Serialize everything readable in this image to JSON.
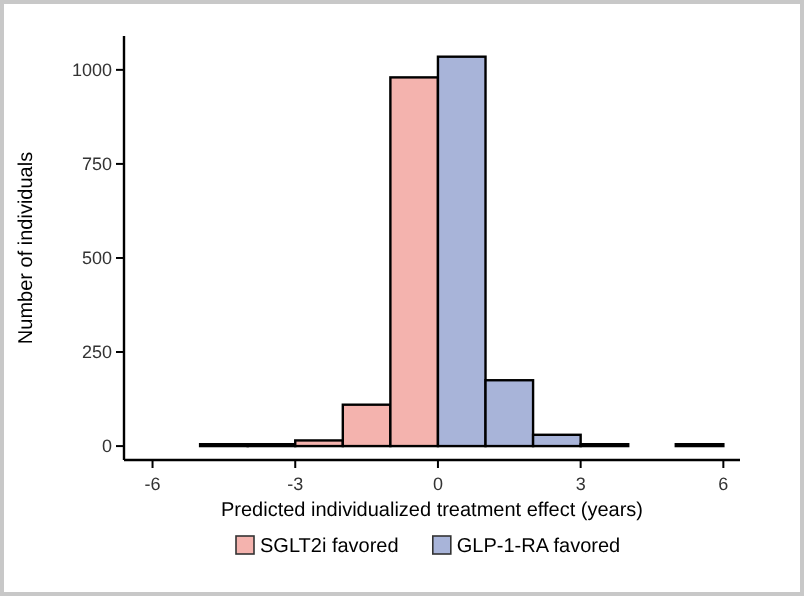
{
  "chart_data": {
    "type": "histogram",
    "xlabel": "Predicted individualized treatment effect (years)",
    "ylabel": "Number of individuals",
    "bins": [
      -6,
      -5,
      -4,
      -3,
      -2,
      -1,
      0,
      1,
      2,
      3,
      4,
      5,
      6
    ],
    "series": [
      {
        "name": "SGLT2i favored",
        "color": "#f4b3ae",
        "values": [
          0,
          5,
          5,
          15,
          110,
          980,
          null,
          null,
          null,
          null,
          null,
          null
        ]
      },
      {
        "name": "GLP-1-RA favored",
        "color": "#a8b4d9",
        "values": [
          null,
          null,
          null,
          null,
          null,
          null,
          1035,
          175,
          30,
          5,
          0,
          5
        ]
      }
    ],
    "xlim": [
      -6.6,
      6.35
    ],
    "xticks": [
      -6,
      -3,
      0,
      3,
      6
    ],
    "ylim": [
      -37,
      1090
    ],
    "yticks": [
      0,
      250,
      500,
      750,
      1000
    ],
    "grid": false,
    "legend": "bottom"
  }
}
